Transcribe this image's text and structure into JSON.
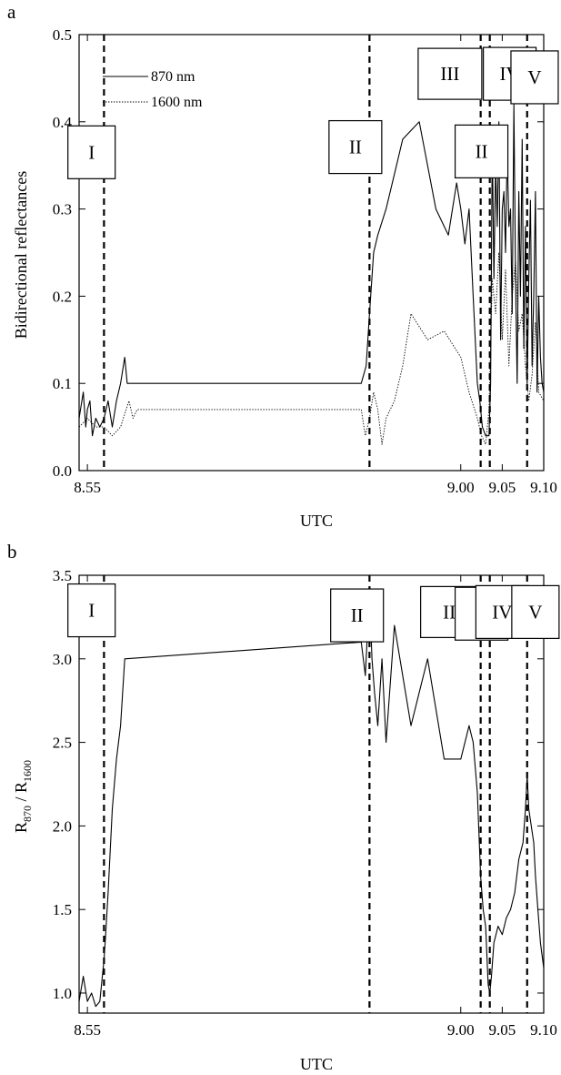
{
  "chart_data": [
    {
      "type": "line",
      "panel_label": "a",
      "xlabel": "UTC",
      "ylabel": "Bidirectional reflectances",
      "xlim": [
        8.54,
        9.1
      ],
      "ylim": [
        0.0,
        0.5
      ],
      "xticks": [
        8.55,
        9.0,
        9.05,
        9.1
      ],
      "xtick_labels": [
        "8.55",
        "9.00",
        "9.05",
        "9.10"
      ],
      "yticks": [
        0.0,
        0.1,
        0.2,
        0.3,
        0.4,
        0.5
      ],
      "ytick_labels": [
        "0.0",
        "0.1",
        "0.2",
        "0.3",
        "0.4",
        "0.5"
      ],
      "legend": {
        "placement": "top-left",
        "entries": [
          {
            "label": "870 nm",
            "style": "solid"
          },
          {
            "label": "1600 nm",
            "style": "dotted"
          }
        ]
      },
      "boundaries_x": [
        8.57,
        8.89,
        9.024,
        9.035,
        9.08
      ],
      "regions": [
        {
          "label": "I",
          "x": 8.555,
          "y": 0.365
        },
        {
          "label": "II",
          "x": 8.873,
          "y": 0.371
        },
        {
          "label": "III",
          "x": 8.987,
          "y": 0.455
        },
        {
          "label": "II",
          "x": 9.025,
          "y": 0.366
        },
        {
          "label": "IV",
          "x": 9.059,
          "y": 0.455
        },
        {
          "label": "V",
          "x": 9.089,
          "y": 0.451
        }
      ],
      "series": [
        {
          "name": "870 nm",
          "style": "solid",
          "x": [
            8.54,
            8.545,
            8.548,
            8.55,
            8.553,
            8.556,
            8.56,
            8.565,
            8.57,
            8.575,
            8.58,
            8.585,
            8.59,
            8.595,
            8.598,
            8.88,
            8.886,
            8.89,
            8.895,
            8.9,
            8.91,
            8.92,
            8.93,
            8.95,
            8.97,
            8.985,
            8.995,
            9.0,
            9.005,
            9.01,
            9.015,
            9.02,
            9.023,
            9.026,
            9.03,
            9.034,
            9.036,
            9.038,
            9.04,
            9.042,
            9.044,
            9.046,
            9.048,
            9.05,
            9.052,
            9.054,
            9.056,
            9.058,
            9.06,
            9.062,
            9.064,
            9.066,
            9.068,
            9.07,
            9.072,
            9.074,
            9.076,
            9.078,
            9.08,
            9.082,
            9.084,
            9.086,
            9.088,
            9.09,
            9.092,
            9.094,
            9.096,
            9.098,
            9.1
          ],
          "y": [
            0.06,
            0.09,
            0.05,
            0.07,
            0.08,
            0.04,
            0.06,
            0.05,
            0.06,
            0.08,
            0.05,
            0.08,
            0.1,
            0.13,
            0.1,
            0.1,
            0.12,
            0.18,
            0.25,
            0.27,
            0.3,
            0.34,
            0.38,
            0.4,
            0.3,
            0.27,
            0.33,
            0.3,
            0.26,
            0.3,
            0.2,
            0.1,
            0.08,
            0.05,
            0.04,
            0.04,
            0.1,
            0.38,
            0.22,
            0.35,
            0.28,
            0.4,
            0.15,
            0.3,
            0.32,
            0.25,
            0.37,
            0.28,
            0.3,
            0.18,
            0.42,
            0.22,
            0.1,
            0.32,
            0.2,
            0.38,
            0.14,
            0.28,
            0.1,
            0.22,
            0.31,
            0.12,
            0.2,
            0.32,
            0.09,
            0.2,
            0.13,
            0.1,
            0.09
          ]
        },
        {
          "name": "1600 nm",
          "style": "dotted",
          "x": [
            8.54,
            8.55,
            8.56,
            8.57,
            8.58,
            8.59,
            8.6,
            8.605,
            8.61,
            8.88,
            8.885,
            8.89,
            8.895,
            8.9,
            8.905,
            8.91,
            8.92,
            8.93,
            8.94,
            8.96,
            8.98,
            9.0,
            9.01,
            9.02,
            9.025,
            9.03,
            9.034,
            9.038,
            9.042,
            9.046,
            9.05,
            9.054,
            9.058,
            9.062,
            9.066,
            9.07,
            9.074,
            9.078,
            9.082,
            9.086,
            9.09,
            9.094,
            9.1
          ],
          "y": [
            0.05,
            0.06,
            0.05,
            0.05,
            0.04,
            0.05,
            0.08,
            0.06,
            0.07,
            0.07,
            0.04,
            0.06,
            0.09,
            0.07,
            0.03,
            0.06,
            0.08,
            0.12,
            0.18,
            0.15,
            0.16,
            0.13,
            0.09,
            0.06,
            0.04,
            0.03,
            0.07,
            0.22,
            0.18,
            0.25,
            0.15,
            0.23,
            0.12,
            0.2,
            0.24,
            0.16,
            0.18,
            0.12,
            0.08,
            0.11,
            0.17,
            0.09,
            0.08
          ]
        }
      ]
    },
    {
      "type": "line",
      "panel_label": "b",
      "xlabel": "UTC",
      "ylabel_main": "R",
      "ylabel_sub1": "870",
      "ylabel_sep": " / R",
      "ylabel_sub2": "1600",
      "xlim": [
        8.54,
        9.1
      ],
      "ylim": [
        0.88,
        3.5
      ],
      "xticks": [
        8.55,
        9.0,
        9.05,
        9.1
      ],
      "xtick_labels": [
        "8.55",
        "9.00",
        "9.05",
        "9.10"
      ],
      "yticks": [
        1.0,
        1.5,
        2.0,
        2.5,
        3.0,
        3.5
      ],
      "ytick_labels": [
        "1.0",
        "1.5",
        "2.0",
        "2.5",
        "3.0",
        "3.5"
      ],
      "boundaries_x": [
        8.57,
        8.89,
        9.024,
        9.035,
        9.08
      ],
      "regions": [
        {
          "label": "I",
          "x": 8.555,
          "y": 3.29
        },
        {
          "label": "II",
          "x": 8.875,
          "y": 3.26
        },
        {
          "label": "III",
          "x": 8.99,
          "y": 3.28
        },
        {
          "label": "II",
          "x": 9.025,
          "y": 3.27
        },
        {
          "label": "IV",
          "x": 9.05,
          "y": 3.28
        },
        {
          "label": "V",
          "x": 9.09,
          "y": 3.28
        }
      ],
      "series": [
        {
          "name": "",
          "style": "solid",
          "x": [
            8.54,
            8.545,
            8.55,
            8.555,
            8.56,
            8.565,
            8.57,
            8.572,
            8.575,
            8.58,
            8.585,
            8.59,
            8.595,
            8.88,
            8.885,
            8.89,
            8.893,
            8.896,
            8.9,
            8.905,
            8.91,
            8.92,
            8.94,
            8.96,
            8.98,
            9.0,
            9.01,
            9.015,
            9.02,
            9.024,
            9.027,
            9.03,
            9.033,
            9.035,
            9.037,
            9.04,
            9.045,
            9.05,
            9.055,
            9.06,
            9.065,
            9.07,
            9.075,
            9.078,
            9.08,
            9.082,
            9.085,
            9.088,
            9.09,
            9.093,
            9.096,
            9.1
          ],
          "y": [
            0.95,
            1.1,
            0.95,
            1.0,
            0.92,
            0.95,
            1.2,
            1.35,
            1.6,
            2.1,
            2.4,
            2.6,
            3.0,
            3.1,
            2.9,
            3.4,
            3.0,
            2.8,
            2.6,
            3.0,
            2.5,
            3.2,
            2.6,
            3.0,
            2.4,
            2.4,
            2.6,
            2.5,
            2.2,
            1.7,
            1.5,
            1.4,
            1.05,
            1.0,
            1.1,
            1.3,
            1.4,
            1.35,
            1.45,
            1.5,
            1.6,
            1.8,
            1.9,
            2.1,
            2.3,
            2.1,
            2.0,
            1.9,
            1.7,
            1.5,
            1.3,
            1.15
          ]
        }
      ]
    }
  ]
}
